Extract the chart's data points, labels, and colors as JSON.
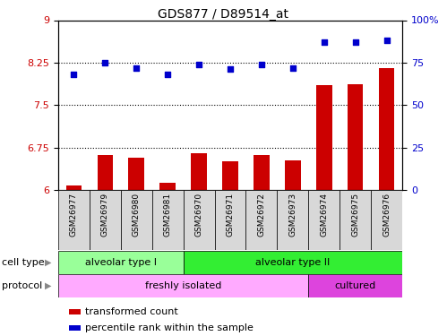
{
  "title": "GDS877 / D89514_at",
  "samples": [
    "GSM26977",
    "GSM26979",
    "GSM26980",
    "GSM26981",
    "GSM26970",
    "GSM26971",
    "GSM26972",
    "GSM26973",
    "GSM26974",
    "GSM26975",
    "GSM26976"
  ],
  "transformed_count": [
    6.08,
    6.62,
    6.57,
    6.12,
    6.65,
    6.5,
    6.62,
    6.52,
    7.85,
    7.86,
    8.15
  ],
  "percentile_rank": [
    68,
    75,
    72,
    68,
    74,
    71,
    74,
    72,
    87,
    87,
    88
  ],
  "bar_color": "#cc0000",
  "dot_color": "#0000cc",
  "ylim_left": [
    6,
    9
  ],
  "ylim_right": [
    0,
    100
  ],
  "yticks_left": [
    6,
    6.75,
    7.5,
    8.25,
    9
  ],
  "yticks_right": [
    0,
    25,
    50,
    75,
    100
  ],
  "hlines": [
    6.75,
    7.5,
    8.25
  ],
  "cell_type_groups": [
    {
      "label": "alveolar type I",
      "start": 0,
      "end": 3,
      "color": "#99ff99"
    },
    {
      "label": "alveolar type II",
      "start": 4,
      "end": 10,
      "color": "#33ee33"
    }
  ],
  "protocol_groups": [
    {
      "label": "freshly isolated",
      "start": 0,
      "end": 7,
      "color": "#ffaaff"
    },
    {
      "label": "cultured",
      "start": 8,
      "end": 10,
      "color": "#dd44dd"
    }
  ],
  "legend_items": [
    {
      "label": "transformed count",
      "color": "#cc0000"
    },
    {
      "label": "percentile rank within the sample",
      "color": "#0000cc"
    }
  ],
  "cell_type_label": "cell type",
  "protocol_label": "protocol"
}
